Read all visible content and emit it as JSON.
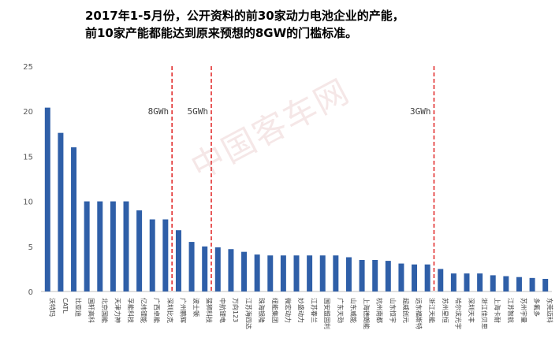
{
  "title_lines": [
    "2017年1-5月份，公开资料的前30家动力电池企业的产能，",
    "前10家产能都能达到原来预想的8GW的门槛标准。"
  ],
  "watermark": "中国客车网",
  "chart_data": {
    "type": "bar",
    "title": "2017年1-5月份，公开资料的前30家动力电池企业的产能，前10家产能都能达到原来预想的8GW的门槛标准。",
    "xlabel": "",
    "ylabel": "",
    "ylim": [
      0,
      25
    ],
    "yticks": [
      0,
      5,
      10,
      15,
      20,
      25
    ],
    "grid": false,
    "bar_color": "#2f5fa8",
    "threshold_line_color": "#e02020",
    "categories": [
      "沃特玛",
      "CATL",
      "比亚迪",
      "国轩高科",
      "北京国能",
      "天津力神",
      "孚能科技",
      "亿纬锂能",
      "广西卓能",
      "深圳比克",
      "广州鹏辉",
      "波士顿",
      "猛狮科技",
      "中航锂电",
      "万向123",
      "江苏海四达",
      "珠海银隆",
      "纽能集团",
      "微宏动力",
      "妙盛动力",
      "江苏春兰",
      "国安盟固利",
      "广东天劲",
      "山东威能",
      "上海德朗能",
      "杭州南都",
      "山东恒宇",
      "超威创元",
      "远东福斯特",
      "浙江天能",
      "苏州星恒",
      "哈尔滨光宇",
      "深圳天丰",
      "浙江佳贝思",
      "上海卡耐",
      "江苏智航",
      "苏州宇量",
      "多氟多",
      "东莞迈科"
    ],
    "values": [
      20.4,
      17.6,
      16.0,
      10.0,
      10.0,
      10.0,
      10.0,
      9.0,
      8.0,
      8.0,
      6.8,
      5.5,
      5.0,
      4.9,
      4.7,
      4.4,
      4.1,
      4.0,
      4.0,
      4.0,
      4.0,
      4.0,
      4.0,
      3.8,
      3.5,
      3.5,
      3.4,
      3.1,
      3.0,
      3.0,
      2.5,
      2.0,
      2.0,
      2.0,
      1.8,
      1.7,
      1.6,
      1.5,
      1.4
    ],
    "thresholds": [
      {
        "label": "8GWh",
        "after_category": "深圳比克"
      },
      {
        "label": "5GWh",
        "after_category": "猛狮科技"
      },
      {
        "label": "3GWh",
        "after_category": "浙江天能"
      }
    ]
  }
}
